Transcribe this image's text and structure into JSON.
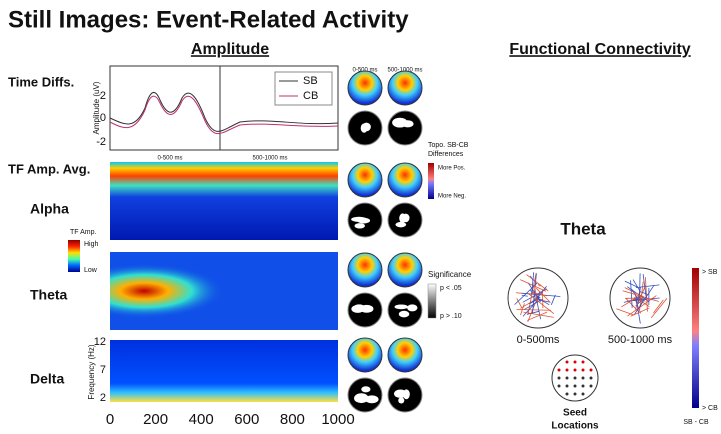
{
  "title": "Still Images: Event-Related Activity",
  "sections": {
    "amplitude": "Amplitude",
    "connectivity": "Functional Connectivity"
  },
  "erp": {
    "row_label": "Time Diffs.",
    "y_label": "Amplitude (uV)",
    "yticks": [
      2,
      0,
      -2
    ],
    "legend": [
      "SB",
      "CB"
    ],
    "windows": [
      "0-500 ms",
      "500-1000 ms"
    ]
  },
  "tf": {
    "row_label": "TF Amp. Avg.",
    "bands": [
      "Alpha",
      "Theta",
      "Delta"
    ],
    "colorbar": {
      "title": "TF Amp.",
      "high": "High",
      "low": "Low"
    },
    "y_label": "Frequency (Hz)",
    "yticks": [
      12,
      7,
      2
    ],
    "xticks": [
      0,
      200,
      400,
      600,
      800,
      1000
    ]
  },
  "topo": {
    "windows": [
      "0-500 ms",
      "500-1000 ms"
    ],
    "diff_legend": {
      "title": "Topo. SB-CB",
      "title2": "Differences",
      "pos": "More Pos.",
      "neg": "More Neg."
    },
    "significance": {
      "title": "Significance",
      "p1": "p < .05",
      "p2": "p > .10"
    }
  },
  "connectivity": {
    "band": "Theta",
    "windows": [
      "0-500ms",
      "500-1000 ms"
    ],
    "seed": "Seed",
    "seed2": "Locations",
    "colorbar": {
      "top": "> SB",
      "bottom": "> CB",
      "caption": "SB - CB"
    }
  }
}
